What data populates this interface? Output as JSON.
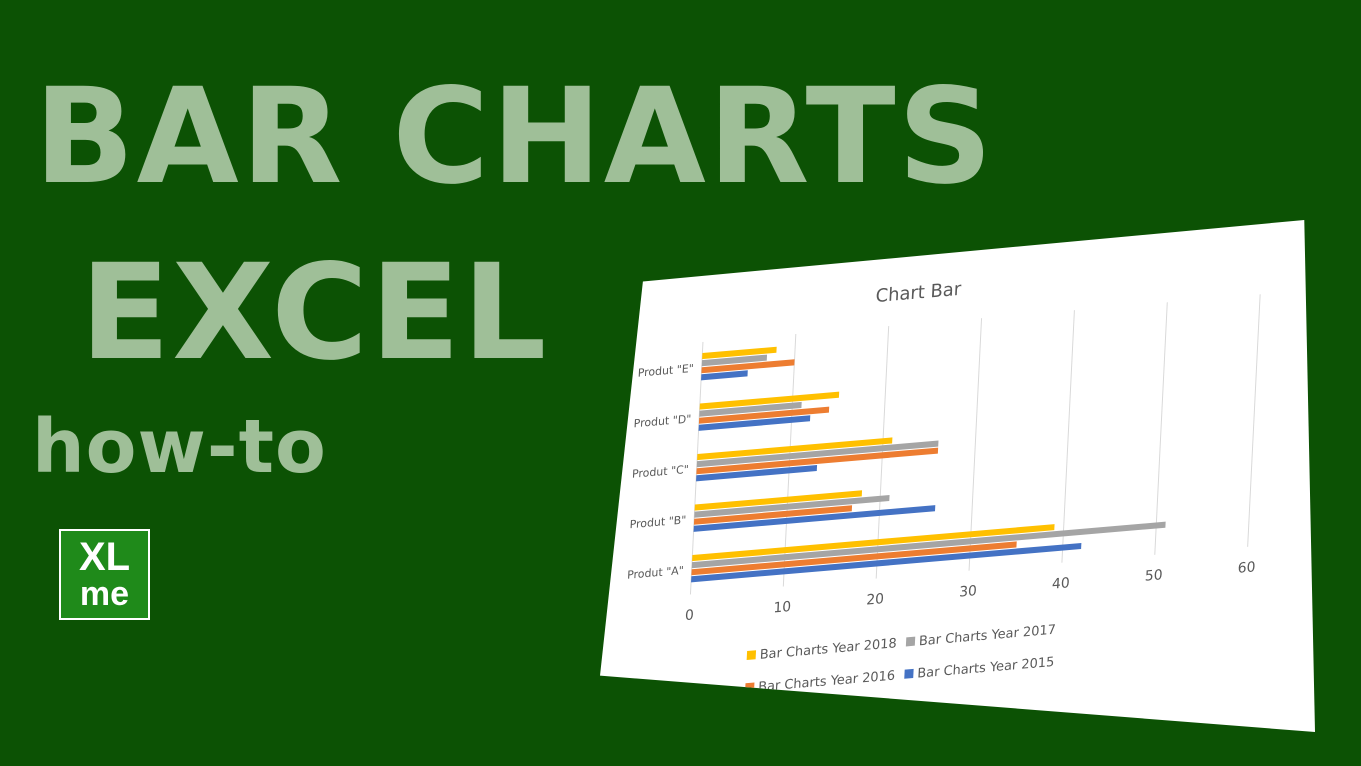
{
  "headline": {
    "line1": "BAR CHARTS",
    "line2": "EXCEL",
    "subtitle": "how-to"
  },
  "logo": {
    "line1": "XL",
    "line2": "me"
  },
  "chart_data": {
    "type": "bar",
    "orientation": "horizontal",
    "title": "Chart Bar",
    "categories": [
      "Produt \"A\"",
      "Produt \"B\"",
      "Produt \"C\"",
      "Produt \"D\"",
      "Produt \"E\""
    ],
    "series": [
      {
        "name": "Bar Charts Year 2015",
        "values": [
          42,
          26,
          13,
          12,
          5
        ],
        "color": "#4472c4"
      },
      {
        "name": "Bar Charts Year 2016",
        "values": [
          35,
          17,
          26,
          14,
          10
        ],
        "color": "#ed7d31"
      },
      {
        "name": "Bar Charts Year 2017",
        "values": [
          51,
          21,
          26,
          11,
          7
        ],
        "color": "#a5a5a5"
      },
      {
        "name": "Bar Charts Year 2018",
        "values": [
          39,
          18,
          21,
          15,
          8
        ],
        "color": "#ffc000"
      }
    ],
    "xlim": [
      0,
      60
    ],
    "xticks": [
      "0",
      "10",
      "20",
      "30",
      "40",
      "50",
      "60"
    ],
    "legend_position": "bottom",
    "grid": true
  }
}
